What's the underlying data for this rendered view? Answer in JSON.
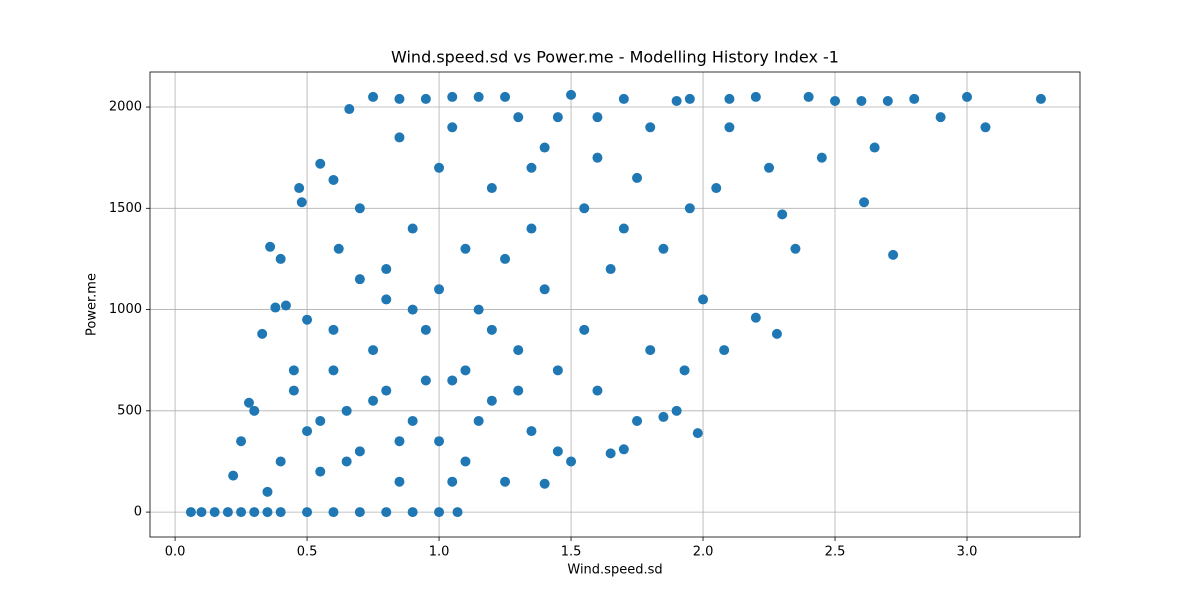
{
  "chart_data": {
    "type": "scatter",
    "title": "Wind.speed.sd vs Power.me - Modelling History Index -1",
    "x_label": "Wind.speed.sd",
    "y_label": "Power.me",
    "color": "#1f77b4",
    "grid": true,
    "x": [
      0.06,
      0.1,
      0.15,
      0.2,
      0.25,
      0.3,
      0.35,
      0.4,
      0.5,
      0.6,
      0.7,
      0.8,
      0.9,
      1.0,
      1.07,
      0.22,
      0.25,
      0.3,
      0.35,
      0.4,
      0.45,
      0.5,
      0.55,
      0.6,
      0.65,
      0.7,
      0.75,
      0.8,
      0.85,
      0.9,
      0.95,
      1.0,
      1.05,
      1.1,
      1.15,
      1.2,
      1.25,
      1.3,
      1.35,
      1.4,
      1.45,
      1.5,
      0.36,
      0.4,
      0.47,
      0.48,
      0.55,
      0.6,
      0.66,
      0.7,
      0.75,
      0.8,
      0.85,
      0.9,
      0.95,
      1.0,
      1.05,
      1.1,
      1.15,
      1.2,
      1.3,
      1.35,
      1.4,
      1.5,
      1.55,
      1.6,
      1.65,
      1.7,
      1.75,
      1.8,
      1.85,
      1.9,
      1.95,
      2.0,
      2.05,
      2.1,
      2.2,
      2.25,
      2.3,
      2.35,
      2.4,
      2.45,
      2.5,
      2.61,
      2.65,
      2.72,
      2.8,
      2.9,
      3.0,
      3.07,
      3.28,
      2.2,
      2.28,
      2.08,
      1.98,
      1.93,
      1.9,
      1.7,
      1.65,
      1.4,
      1.6,
      1.8,
      1.75,
      1.85,
      1.55,
      1.45,
      1.3,
      1.2,
      1.1,
      1.0,
      0.9,
      0.8,
      0.7,
      0.6,
      0.5,
      0.45,
      0.42,
      0.38,
      0.33,
      0.28,
      0.55,
      0.65,
      0.75,
      0.85,
      0.95,
      1.05,
      1.15,
      1.25,
      1.35,
      1.45,
      1.6,
      1.7,
      1.25,
      1.05,
      0.85,
      1.95,
      2.1,
      2.6,
      2.7,
      0.62
    ],
    "values": [
      0,
      0,
      0,
      0,
      0,
      0,
      0,
      0,
      0,
      0,
      0,
      0,
      0,
      0,
      0,
      180,
      350,
      500,
      100,
      250,
      600,
      400,
      200,
      700,
      500,
      300,
      800,
      600,
      150,
      450,
      900,
      350,
      650,
      250,
      1000,
      550,
      150,
      800,
      400,
      1100,
      300,
      250,
      1310,
      1250,
      1600,
      1530,
      1720,
      1640,
      1990,
      1500,
      2050,
      1200,
      1850,
      1400,
      2040,
      1700,
      1900,
      1300,
      2050,
      1600,
      1950,
      1400,
      1800,
      2060,
      1500,
      1950,
      1200,
      2040,
      1650,
      1900,
      1300,
      2030,
      1500,
      1050,
      1600,
      1900,
      2050,
      1700,
      1470,
      1300,
      2050,
      1750,
      2030,
      1530,
      1800,
      1270,
      2040,
      1950,
      2050,
      1900,
      2040,
      960,
      880,
      800,
      390,
      700,
      500,
      310,
      290,
      140,
      600,
      800,
      450,
      470,
      900,
      700,
      600,
      900,
      700,
      1100,
      1000,
      1050,
      1150,
      900,
      950,
      700,
      1020,
      1010,
      880,
      540,
      450,
      250,
      550,
      350,
      650,
      150,
      450,
      1250,
      1700,
      1950,
      1750,
      1400,
      2050,
      2050,
      2040,
      2040,
      2040,
      2030,
      2030,
      1300
    ],
    "xlim": [
      -0.095,
      3.428
    ],
    "ylim": [
      -123,
      2173
    ],
    "xticks": [
      {
        "value": 0,
        "label": "0.0"
      },
      0.5,
      {
        "value": 1,
        "label": "1.0"
      },
      1.5,
      {
        "value": 2,
        "label": "2.0"
      },
      2.5,
      {
        "value": 3,
        "label": "3.0"
      }
    ],
    "yticks": [
      0,
      500,
      1000,
      1500,
      2000
    ]
  }
}
